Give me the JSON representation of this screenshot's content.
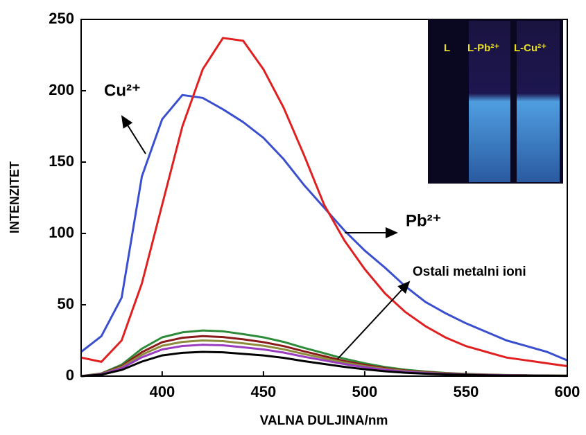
{
  "chart_data": {
    "type": "line",
    "xlabel": "VALNA DULJINA/nm",
    "ylabel": "INTENZITET",
    "x": [
      360,
      370,
      380,
      390,
      400,
      410,
      420,
      430,
      440,
      450,
      460,
      470,
      480,
      490,
      500,
      510,
      520,
      530,
      540,
      550,
      560,
      570,
      580,
      590,
      600
    ],
    "series": [
      {
        "color": "#2e8b3a",
        "values": [
          0,
          1.9,
          8,
          19.2,
          27.2,
          30.7,
          32,
          31.4,
          29.4,
          27.2,
          24,
          19.8,
          16,
          12.2,
          9,
          6.4,
          4.5,
          3.2,
          2.2,
          1.6,
          1.1,
          0.8,
          0.6,
          0.5,
          0.3
        ]
      },
      {
        "color": "#8b1a1a",
        "values": [
          0,
          1.7,
          7,
          16.8,
          23.8,
          26.9,
          28,
          27.4,
          25.8,
          23.8,
          21,
          17.4,
          14,
          10.6,
          7.8,
          5.6,
          3.9,
          2.8,
          2,
          1.4,
          1,
          0.7,
          0.6,
          0.4,
          0.3
        ]
      },
      {
        "color": "#8c8c3c",
        "values": [
          0,
          1.5,
          6.3,
          15,
          21.3,
          24,
          25,
          24.5,
          23,
          21.3,
          18.8,
          15.5,
          12.5,
          9.5,
          7,
          5,
          3.5,
          2.5,
          1.8,
          1.3,
          0.9,
          0.6,
          0.5,
          0.4,
          0.3
        ]
      },
      {
        "color": "#9a3cc0",
        "values": [
          0,
          1.3,
          5.5,
          13.2,
          18.7,
          21.1,
          22,
          21.6,
          20.2,
          18.7,
          16.5,
          13.6,
          11,
          8.4,
          6.2,
          4.4,
          3.1,
          2.2,
          1.5,
          1.1,
          0.8,
          0.6,
          0.4,
          0.3,
          0.2
        ]
      },
      {
        "color": "#000000",
        "values": [
          0,
          1,
          4.3,
          10.2,
          14.5,
          16.3,
          17,
          16.7,
          15.6,
          14.5,
          12.8,
          10.5,
          8.5,
          6.5,
          4.8,
          3.4,
          2.4,
          1.7,
          1.2,
          0.9,
          0.6,
          0.4,
          0.3,
          0.3,
          0.2
        ]
      },
      {
        "name": "Cu²⁺",
        "color": "#3a4fd0",
        "values": [
          17,
          28,
          55,
          140,
          180,
          197,
          195,
          187,
          178,
          167,
          152,
          134,
          118,
          102,
          88,
          76,
          63,
          52,
          44,
          37,
          31,
          25,
          21,
          17,
          11
        ]
      },
      {
        "name": "Pb²⁺",
        "color": "#e02020",
        "values": [
          13,
          10,
          25,
          65,
          120,
          175,
          215,
          237,
          235,
          215,
          188,
          155,
          120,
          95,
          75,
          58,
          45,
          35,
          27,
          21,
          17,
          13,
          11,
          9,
          7
        ]
      }
    ],
    "annotations": [
      "Ostali metalni ioni"
    ],
    "inset_labels": [
      "L",
      "L-Pb²⁺",
      "L-Cu²⁺"
    ],
    "xlim": [
      360,
      600
    ],
    "xticks": [
      400,
      450,
      500,
      550,
      600
    ],
    "ylim": [
      0,
      250
    ],
    "yticks": [
      0,
      50,
      100,
      150,
      200,
      250
    ]
  }
}
